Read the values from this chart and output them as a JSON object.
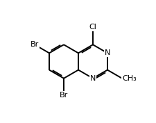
{
  "background": "#ffffff",
  "bond_color": "#000000",
  "text_color": "#000000",
  "figsize": [
    2.26,
    1.77
  ],
  "dpi": 100,
  "ring_r": 0.115,
  "lw": 1.4,
  "font_size": 8.0,
  "xlim": [
    0.02,
    0.82
  ],
  "ylim": [
    0.08,
    0.92
  ]
}
